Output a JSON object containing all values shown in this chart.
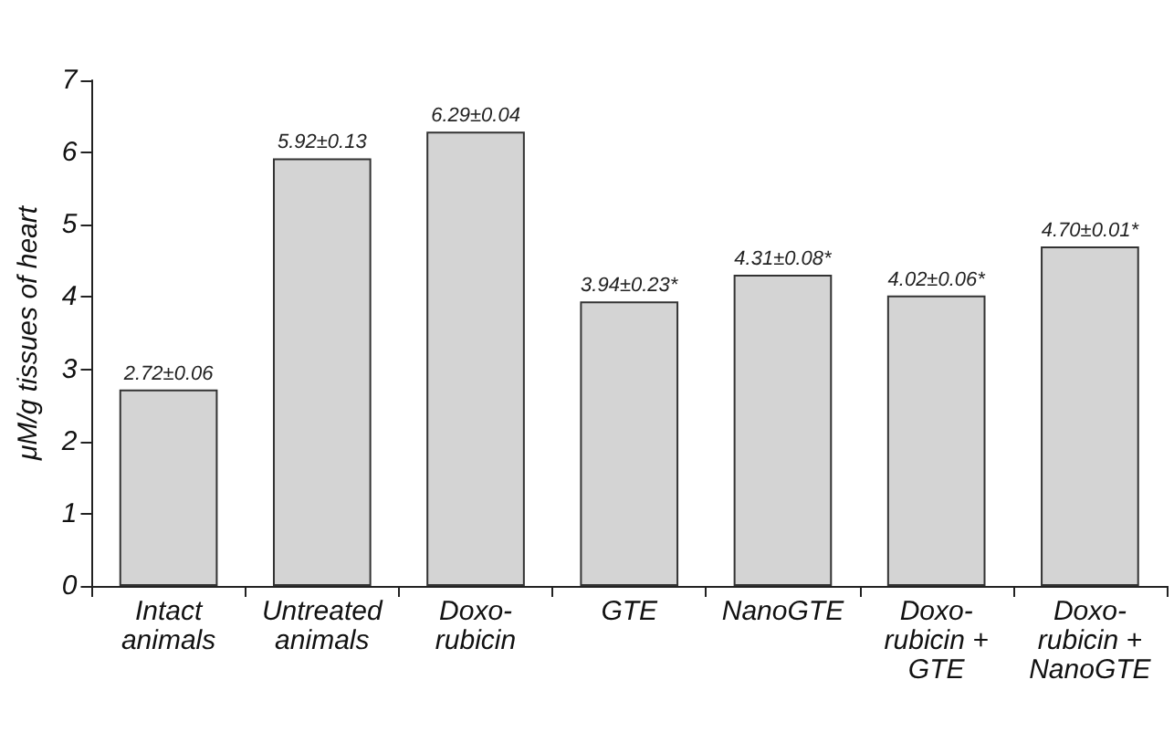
{
  "chart_data": {
    "type": "bar",
    "ylabel": "μM/g tissues of heart",
    "categories": [
      "Intact\nanimals",
      "Untreated\nanimals",
      "Doxo-\nrubicin",
      "GTE",
      "NanoGTE",
      "Doxo-\nrubicin +\nGTE",
      "Doxo-\nrubicin +\nNanoGTE"
    ],
    "values": [
      2.72,
      5.92,
      6.29,
      3.94,
      4.31,
      4.02,
      4.7
    ],
    "value_labels": [
      "2.72±0.06",
      "5.92±0.13",
      "6.29±0.04",
      "3.94±0.23*",
      "4.31±0.08*",
      "4.02±0.06*",
      "4.70±0.01*"
    ],
    "color": "#d4d4d4",
    "ylim": [
      0,
      7
    ],
    "yticks": [
      0,
      1,
      2,
      3,
      4,
      5,
      6,
      7
    ],
    "grid": false
  }
}
